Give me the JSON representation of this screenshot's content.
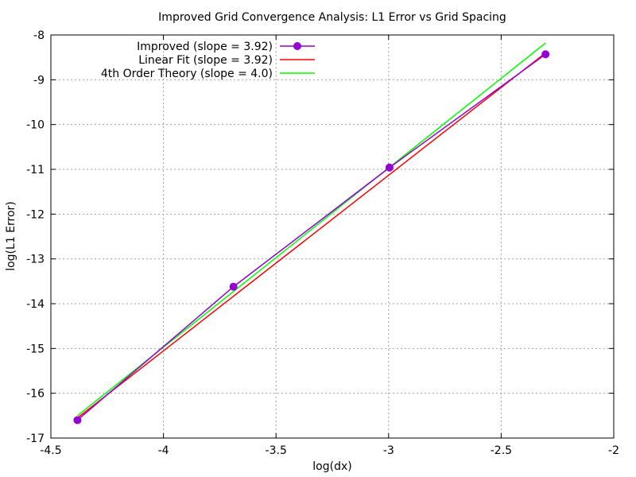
{
  "chart_data": {
    "type": "line",
    "title": "Improved Grid Convergence Analysis: L1 Error vs Grid Spacing",
    "xlabel": "log(dx)",
    "ylabel": "log(L1 Error)",
    "xlim": [
      -4.5,
      -2
    ],
    "ylim": [
      -17,
      -8
    ],
    "x_ticks": [
      -4.5,
      -4,
      -3.5,
      -3,
      -2.5,
      -2
    ],
    "x_tick_labels": [
      "-4.5",
      "-4",
      "-3.5",
      "-3",
      "-2.5",
      "-2"
    ],
    "y_ticks": [
      -17,
      -16,
      -15,
      -14,
      -13,
      -12,
      -11,
      -10,
      -9,
      -8
    ],
    "y_tick_labels": [
      "-17",
      "-16",
      "-15",
      "-14",
      "-13",
      "-12",
      "-11",
      "-10",
      "-9",
      "-8"
    ],
    "grid": true,
    "legend_position": "top-left",
    "series": [
      {
        "name": "Improved (slope = 3.92)",
        "color": "#9400d3",
        "markers": true,
        "x": [
          -4.382,
          -3.689,
          -2.996,
          -2.303
        ],
        "y": [
          -16.6,
          -13.62,
          -10.96,
          -8.43
        ]
      },
      {
        "name": "Linear Fit (slope = 3.92)",
        "color": "#ff0000",
        "markers": false,
        "x": [
          -4.382,
          -2.303
        ],
        "y": [
          -16.55,
          -8.4
        ]
      },
      {
        "name": "4th Order Theory (slope = 4.0)",
        "color": "#00ff00",
        "markers": false,
        "x": [
          -4.382,
          -2.303
        ],
        "y": [
          -16.5,
          -8.18
        ]
      }
    ]
  }
}
